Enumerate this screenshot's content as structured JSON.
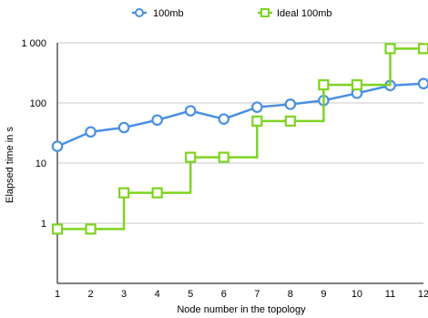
{
  "chart_data": {
    "type": "line",
    "title": "",
    "xlabel": "Node number in the topology",
    "ylabel": "Elapsed time in s",
    "x": [
      1,
      2,
      3,
      4,
      5,
      6,
      7,
      8,
      9,
      10,
      11,
      12
    ],
    "x_tick_labels": [
      "1",
      "2",
      "3",
      "4",
      "5",
      "6",
      "7",
      "8",
      "9",
      "10",
      "11",
      "12"
    ],
    "y_scale": "log",
    "ylim": [
      0.1,
      1000
    ],
    "y_ticks": [
      1,
      10,
      100,
      1000
    ],
    "y_tick_labels": [
      "1",
      "10",
      "100",
      "1 000"
    ],
    "grid": true,
    "legend_position": "top",
    "series": [
      {
        "name": "100mb",
        "color": "#4a90e2",
        "marker": "circle",
        "values": [
          19,
          33,
          39,
          52,
          74,
          54,
          85,
          95,
          110,
          145,
          195,
          210
        ]
      },
      {
        "name": "Ideal 100mb",
        "color": "#7ed321",
        "marker": "square",
        "values": [
          0.8,
          0.8,
          3.2,
          3.2,
          12.5,
          12.5,
          50,
          50,
          200,
          200,
          800,
          800
        ]
      }
    ]
  }
}
